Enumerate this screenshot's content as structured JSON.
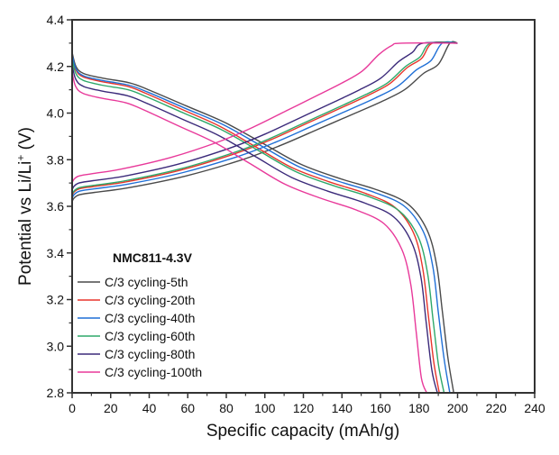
{
  "chart_data": {
    "type": "line",
    "title": "",
    "xlabel": "Specific capacity (mAh/g)",
    "ylabel": "Potential vs Li/Li",
    "ylabel_sup": "+",
    "ylabel_unit": " (V)",
    "xlim": [
      0,
      240
    ],
    "ylim": [
      2.8,
      4.4
    ],
    "xticks": [
      "0",
      "20",
      "40",
      "60",
      "80",
      "100",
      "120",
      "140",
      "160",
      "180",
      "200",
      "220",
      "240"
    ],
    "yticks": [
      "2.8",
      "3.0",
      "3.2",
      "3.4",
      "3.6",
      "3.8",
      "4.0",
      "4.2",
      "4.4"
    ],
    "grid": false,
    "legend_title": "NMC811-4.3V",
    "legend_position": "bottom-left",
    "series": [
      {
        "name": "C/3 cycling-5th",
        "color": "#4a4a4a",
        "charge": {
          "x": [
            0,
            1,
            3.9,
            11.8,
            29.4,
            58.8,
            88.2,
            107.8,
            127.4,
            147,
            160.7,
            172.5,
            182.3,
            190.1,
            196,
            200
          ],
          "y": [
            3.62,
            3.635,
            3.65,
            3.66,
            3.68,
            3.73,
            3.8,
            3.86,
            3.93,
            4.0,
            4.05,
            4.1,
            4.17,
            4.21,
            4.3,
            4.3
          ]
        },
        "discharge": {
          "x": [
            0,
            2,
            5.9,
            15.8,
            29.7,
            39.6,
            59.4,
            79.2,
            99,
            118.8,
            138.6,
            158.4,
            174.2,
            184.1,
            189.1,
            192.1,
            195,
            198
          ],
          "y": [
            4.26,
            4.2,
            4.17,
            4.15,
            4.13,
            4.1,
            4.03,
            3.96,
            3.87,
            3.78,
            3.72,
            3.67,
            3.61,
            3.5,
            3.35,
            3.15,
            2.95,
            2.8
          ]
        }
      },
      {
        "name": "C/3 cycling-20th",
        "color": "#e8352b",
        "charge": {
          "x": [
            0,
            0.9,
            3.7,
            11.2,
            28.1,
            56.1,
            84.2,
            102.9,
            121.6,
            140.3,
            153.3,
            164.6,
            173.9,
            181.4,
            187,
            200
          ],
          "y": [
            3.645,
            3.66,
            3.675,
            3.685,
            3.705,
            3.755,
            3.825,
            3.885,
            3.955,
            4.025,
            4.075,
            4.125,
            4.195,
            4.235,
            4.3,
            4.3
          ]
        },
        "discharge": {
          "x": [
            0,
            1.9,
            5.7,
            15.2,
            28.6,
            38.1,
            57.2,
            76.2,
            95.3,
            114.3,
            133.4,
            152.4,
            167.6,
            177.2,
            181.9,
            184.8,
            187.6,
            190.5
          ],
          "y": [
            4.245,
            4.185,
            4.155,
            4.135,
            4.115,
            4.085,
            4.015,
            3.945,
            3.855,
            3.765,
            3.705,
            3.655,
            3.595,
            3.485,
            3.335,
            3.135,
            2.935,
            2.8
          ]
        }
      },
      {
        "name": "C/3 cycling-40th",
        "color": "#1f6fd6",
        "charge": {
          "x": [
            0,
            1,
            3.8,
            11.5,
            28.8,
            57.6,
            86.4,
            105.6,
            124.8,
            144,
            157.4,
            169,
            178.6,
            186.2,
            192,
            200
          ],
          "y": [
            3.635,
            3.65,
            3.665,
            3.675,
            3.695,
            3.745,
            3.815,
            3.875,
            3.945,
            4.015,
            4.065,
            4.115,
            4.185,
            4.225,
            4.3,
            4.3
          ]
        },
        "discharge": {
          "x": [
            0,
            2,
            5.9,
            15.7,
            29.4,
            39.2,
            58.8,
            78.4,
            98,
            117.6,
            137.2,
            156.8,
            172.5,
            182.3,
            187.2,
            190.1,
            193.1,
            196
          ],
          "y": [
            4.25,
            4.19,
            4.16,
            4.14,
            4.12,
            4.09,
            4.02,
            3.95,
            3.86,
            3.77,
            3.71,
            3.66,
            3.6,
            3.49,
            3.34,
            3.14,
            2.94,
            2.8
          ]
        }
      },
      {
        "name": "C/3 cycling-60th",
        "color": "#2ea86a",
        "charge": {
          "x": [
            0,
            0.9,
            3.7,
            11.2,
            27.9,
            55.8,
            83.7,
            102.3,
            120.9,
            139.5,
            152.5,
            163.7,
            173,
            180.4,
            186,
            200
          ],
          "y": [
            3.65,
            3.665,
            3.68,
            3.69,
            3.71,
            3.76,
            3.83,
            3.89,
            3.96,
            4.03,
            4.08,
            4.13,
            4.2,
            4.24,
            4.3,
            4.3
          ]
        },
        "discharge": {
          "x": [
            0,
            1.9,
            5.8,
            15.4,
            29,
            38.6,
            57.9,
            77.2,
            96.5,
            115.8,
            135.1,
            154.4,
            169.8,
            179.5,
            184.3,
            187.2,
            190.1,
            193
          ],
          "y": [
            4.23,
            4.17,
            4.14,
            4.12,
            4.1,
            4.07,
            4.0,
            3.93,
            3.84,
            3.75,
            3.69,
            3.64,
            3.58,
            3.47,
            3.32,
            3.12,
            2.92,
            2.8
          ]
        }
      },
      {
        "name": "C/3 cycling-80th",
        "color": "#3b2a7a",
        "charge": {
          "x": [
            0,
            0.9,
            3.6,
            10.9,
            27.3,
            54.6,
            81.9,
            100.1,
            118.3,
            136.5,
            149.2,
            160.2,
            169.3,
            176.5,
            182,
            200
          ],
          "y": [
            3.67,
            3.685,
            3.7,
            3.71,
            3.73,
            3.78,
            3.85,
            3.91,
            3.98,
            4.05,
            4.1,
            4.15,
            4.22,
            4.26,
            4.3,
            4.3
          ]
        },
        "discharge": {
          "x": [
            0,
            1.9,
            5.7,
            15.2,
            28.4,
            37.9,
            56.9,
            75.8,
            94.8,
            113.7,
            132.7,
            151.6,
            166.8,
            176.2,
            181,
            183.8,
            186.7,
            189.5
          ],
          "y": [
            4.205,
            4.145,
            4.115,
            4.095,
            4.075,
            4.045,
            3.975,
            3.905,
            3.815,
            3.725,
            3.665,
            3.615,
            3.555,
            3.445,
            3.295,
            3.095,
            2.895,
            2.8
          ]
        }
      },
      {
        "name": "C/3 cycling-100th",
        "color": "#e8399a",
        "charge": {
          "x": [
            0,
            0.9,
            3.4,
            10.3,
            25.7,
            51.3,
            77,
            94.1,
            111.2,
            128.3,
            140.2,
            150.5,
            159,
            165.9,
            171,
            200
          ],
          "y": [
            3.7,
            3.715,
            3.73,
            3.74,
            3.76,
            3.81,
            3.88,
            3.94,
            4.01,
            4.08,
            4.13,
            4.18,
            4.25,
            4.29,
            4.3,
            4.3
          ]
        },
        "discharge": {
          "x": [
            0,
            1.8,
            5.5,
            14.7,
            27.6,
            36.8,
            55.2,
            73.6,
            92,
            110.4,
            128.8,
            147.2,
            161.9,
            171.1,
            175.7,
            178.5,
            181.2,
            184
          ],
          "y": [
            4.175,
            4.115,
            4.085,
            4.065,
            4.045,
            4.015,
            3.945,
            3.875,
            3.785,
            3.695,
            3.635,
            3.585,
            3.525,
            3.415,
            3.265,
            3.065,
            2.865,
            2.8
          ]
        }
      }
    ]
  }
}
